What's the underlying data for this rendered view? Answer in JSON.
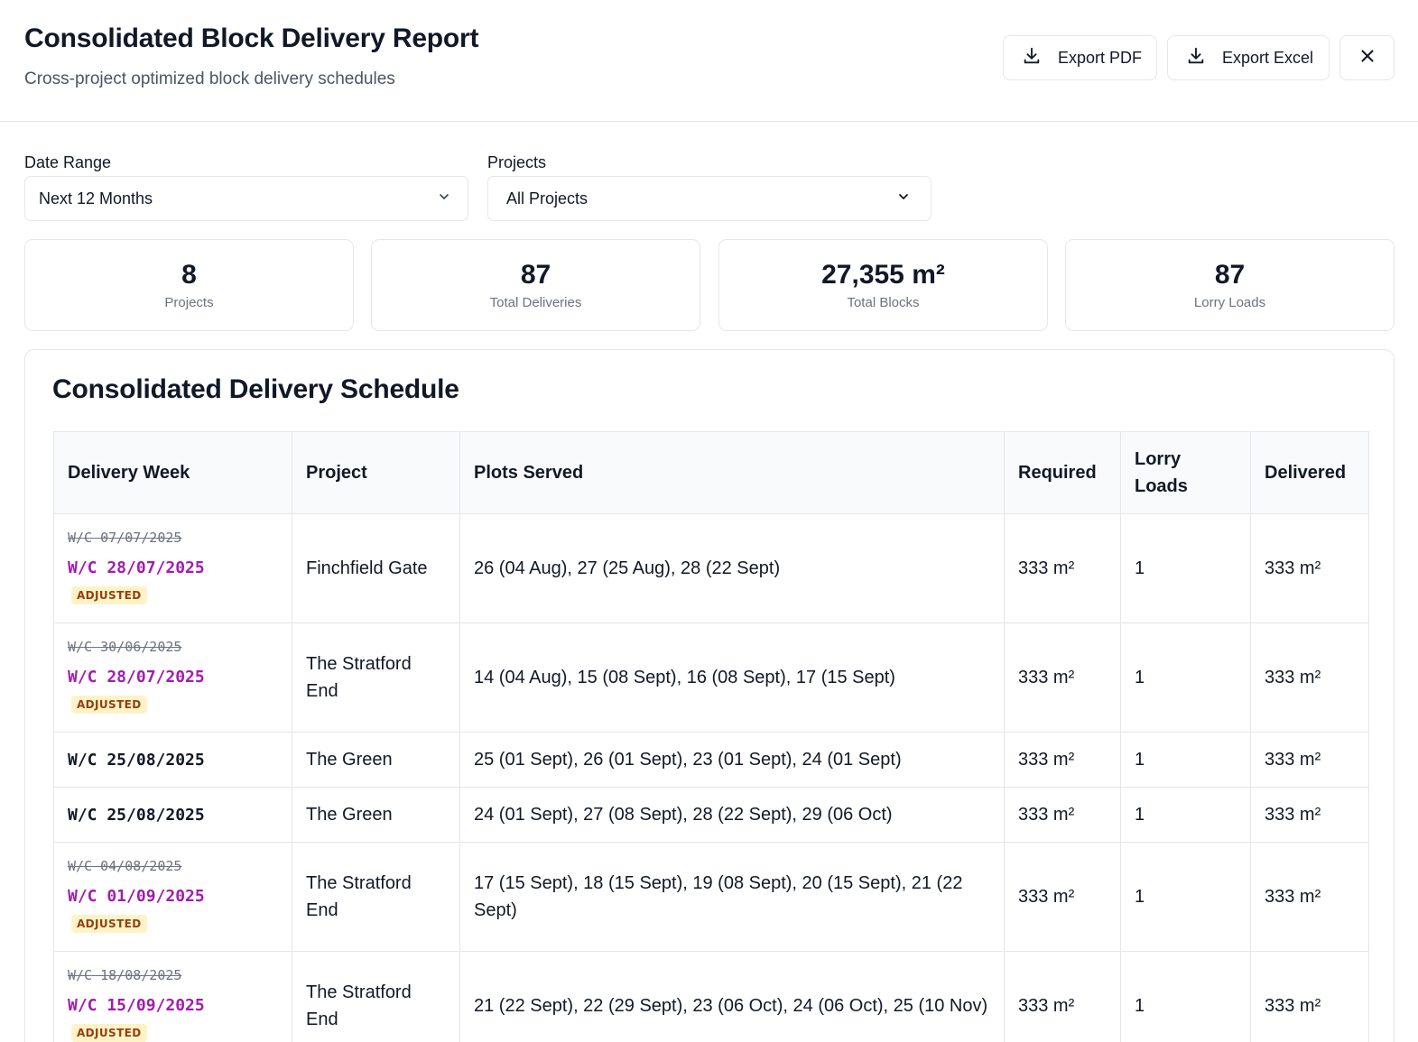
{
  "header": {
    "title": "Consolidated Block Delivery Report",
    "subtitle": "Cross-project optimized block delivery schedules",
    "export_pdf": "Export PDF",
    "export_excel": "Export Excel",
    "close_glyph": "✕"
  },
  "filters": {
    "date_range_label": "Date Range",
    "date_range_value": "Next 12 Months",
    "projects_label": "Projects",
    "projects_value": "All Projects"
  },
  "stats": [
    {
      "value": "8",
      "label": "Projects"
    },
    {
      "value": "87",
      "label": "Total Deliveries"
    },
    {
      "value": "27,355 m²",
      "label": "Total Blocks"
    },
    {
      "value": "87",
      "label": "Lorry Loads"
    }
  ],
  "schedule": {
    "title": "Consolidated Delivery Schedule",
    "columns": [
      "Delivery Week",
      "Project",
      "Plots Served",
      "Required",
      "Lorry Loads",
      "Delivered"
    ],
    "adjusted_badge": "ADJUSTED",
    "rows": [
      {
        "original_week": "W/C 07/07/2025",
        "week": "W/C 28/07/2025",
        "adjusted": true,
        "project": "Finchfield Gate",
        "plots": "26 (04 Aug), 27 (25 Aug), 28 (22 Sept)",
        "required": "333 m²",
        "loads": "1",
        "delivered": "333 m²"
      },
      {
        "original_week": "W/C 30/06/2025",
        "week": "W/C 28/07/2025",
        "adjusted": true,
        "project": "The Stratford End",
        "plots": "14 (04 Aug), 15 (08 Sept), 16 (08 Sept), 17 (15 Sept)",
        "required": "333 m²",
        "loads": "1",
        "delivered": "333 m²"
      },
      {
        "original_week": "",
        "week": "W/C 25/08/2025",
        "adjusted": false,
        "project": "The Green",
        "plots": "25 (01 Sept), 26 (01 Sept), 23 (01 Sept), 24 (01 Sept)",
        "required": "333 m²",
        "loads": "1",
        "delivered": "333 m²"
      },
      {
        "original_week": "",
        "week": "W/C 25/08/2025",
        "adjusted": false,
        "project": "The Green",
        "plots": "24 (01 Sept), 27 (08 Sept), 28 (22 Sept), 29 (06 Oct)",
        "required": "333 m²",
        "loads": "1",
        "delivered": "333 m²"
      },
      {
        "original_week": "W/C 04/08/2025",
        "week": "W/C 01/09/2025",
        "adjusted": true,
        "project": "The Stratford End",
        "plots": "17 (15 Sept), 18 (15 Sept), 19 (08 Sept), 20 (15 Sept), 21 (22 Sept)",
        "required": "333 m²",
        "loads": "1",
        "delivered": "333 m²"
      },
      {
        "original_week": "W/C 18/08/2025",
        "week": "W/C 15/09/2025",
        "adjusted": true,
        "project": "The Stratford End",
        "plots": "21 (22 Sept), 22 (29 Sept), 23 (06 Oct), 24 (06 Oct), 25 (10 Nov)",
        "required": "333 m²",
        "loads": "1",
        "delivered": "333 m²"
      }
    ]
  }
}
